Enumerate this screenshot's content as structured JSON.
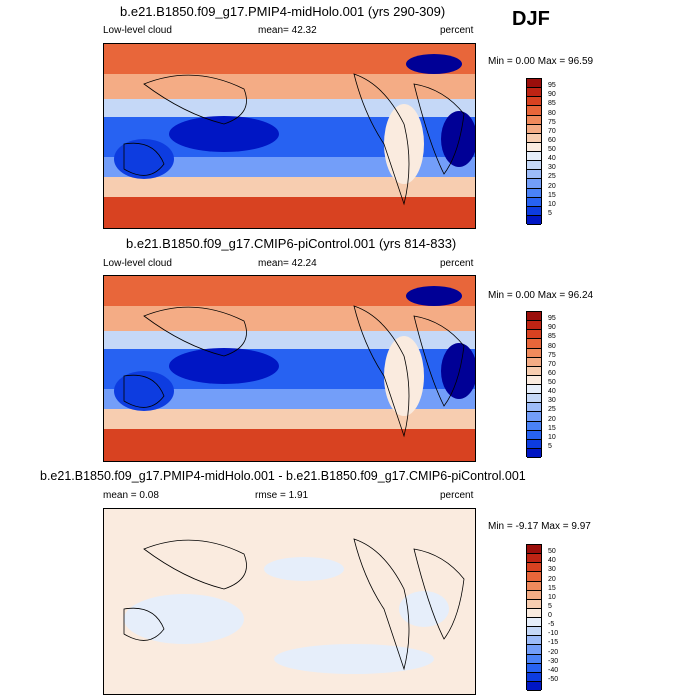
{
  "season": "DJF",
  "palettes": {
    "abs": [
      "#000096",
      "#0016c4",
      "#0d3ce0",
      "#2762f2",
      "#4a82f7",
      "#739ef9",
      "#9dbcf9",
      "#c5d8f7",
      "#e6eefa",
      "#faebdf",
      "#f7cdb0",
      "#f4ac85",
      "#f08a5c",
      "#e8663a",
      "#d84221",
      "#be2414",
      "#9b0e0b"
    ],
    "diff": [
      "#000096",
      "#0016c4",
      "#0d3ce0",
      "#2762f2",
      "#4a82f7",
      "#739ef9",
      "#9dbcf9",
      "#c5d8f7",
      "#e6eefa",
      "#faebdf",
      "#f7cdb0",
      "#f4ac85",
      "#f08a5c",
      "#e8663a",
      "#d84221",
      "#be2414",
      "#9b0e0b"
    ]
  },
  "panels": [
    {
      "title": "b.e21.B1850.f09_g17.PMIP4-midHolo.001 (yrs 290-309)",
      "left_label": "Low-level cloud",
      "mean_text": "mean=  42.32",
      "units": "percent",
      "minmax": "Min =   0.00 Max =  96.59",
      "colorbar_labels": [
        "95",
        "90",
        "85",
        "80",
        "75",
        "70",
        "60",
        "50",
        "40",
        "30",
        "25",
        "20",
        "15",
        "10",
        "5"
      ]
    },
    {
      "title": "b.e21.B1850.f09_g17.CMIP6-piControl.001 (yrs 814-833)",
      "left_label": "Low-level cloud",
      "mean_text": "mean=  42.24",
      "units": "percent",
      "minmax": "Min =   0.00 Max =  96.24",
      "colorbar_labels": [
        "95",
        "90",
        "85",
        "80",
        "75",
        "70",
        "60",
        "50",
        "40",
        "30",
        "25",
        "20",
        "15",
        "10",
        "5"
      ]
    },
    {
      "title": "b.e21.B1850.f09_g17.PMIP4-midHolo.001 - b.e21.B1850.f09_g17.CMIP6-piControl.001",
      "left_label": "mean =   0.08",
      "mean_text": "rmse =   1.91",
      "units": "percent",
      "minmax": "Min =  -9.17 Max =   9.97",
      "colorbar_labels": [
        "50",
        "40",
        "30",
        "20",
        "15",
        "10",
        "5",
        "0",
        "-5",
        "-10",
        "-15",
        "-20",
        "-30",
        "-40",
        "-50"
      ]
    }
  ],
  "chart_data": [
    {
      "type": "heatmap",
      "title": "b.e21.B1850.f09_g17.PMIP4-midHolo.001 (yrs 290-309)",
      "variable": "Low-level cloud",
      "units": "percent",
      "season": "DJF",
      "mean": 42.32,
      "min": 0.0,
      "max": 96.59,
      "contour_levels": [
        5,
        10,
        15,
        20,
        25,
        30,
        40,
        50,
        60,
        70,
        75,
        80,
        85,
        90,
        95
      ]
    },
    {
      "type": "heatmap",
      "title": "b.e21.B1850.f09_g17.CMIP6-piControl.001 (yrs 814-833)",
      "variable": "Low-level cloud",
      "units": "percent",
      "season": "DJF",
      "mean": 42.24,
      "min": 0.0,
      "max": 96.24,
      "contour_levels": [
        5,
        10,
        15,
        20,
        25,
        30,
        40,
        50,
        60,
        70,
        75,
        80,
        85,
        90,
        95
      ]
    },
    {
      "type": "heatmap",
      "title": "b.e21.B1850.f09_g17.PMIP4-midHolo.001 - b.e21.B1850.f09_g17.CMIP6-piControl.001",
      "units": "percent",
      "season": "DJF",
      "mean": 0.08,
      "rmse": 1.91,
      "min": -9.17,
      "max": 9.97,
      "contour_levels": [
        -50,
        -40,
        -30,
        -20,
        -15,
        -10,
        -5,
        0,
        5,
        10,
        15,
        20,
        30,
        40,
        50
      ]
    }
  ]
}
